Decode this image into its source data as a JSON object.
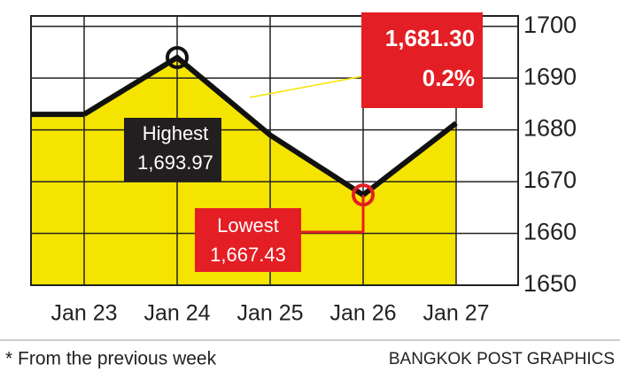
{
  "chart_data": {
    "type": "line",
    "categories": [
      "Jan 23",
      "Jan 24",
      "Jan 25",
      "Jan 26",
      "Jan 27"
    ],
    "values": [
      1683,
      1693.97,
      1679,
      1667.43,
      1681.3
    ],
    "value_labels": [
      null,
      "1,693.97",
      null,
      "1,667.43",
      "1,681.30"
    ],
    "color": "#111111",
    "fill": "#f5e400",
    "ylim": [
      1650,
      1702
    ],
    "yticks": [
      1650,
      1660,
      1670,
      1680,
      1690,
      1700
    ],
    "grid": true,
    "annotations": {
      "highest": "Highest",
      "lowest": "Lowest",
      "change": "0.2%"
    },
    "footnote": "* From the previous week",
    "source": "BANGKOK POST GRAPHICS"
  }
}
